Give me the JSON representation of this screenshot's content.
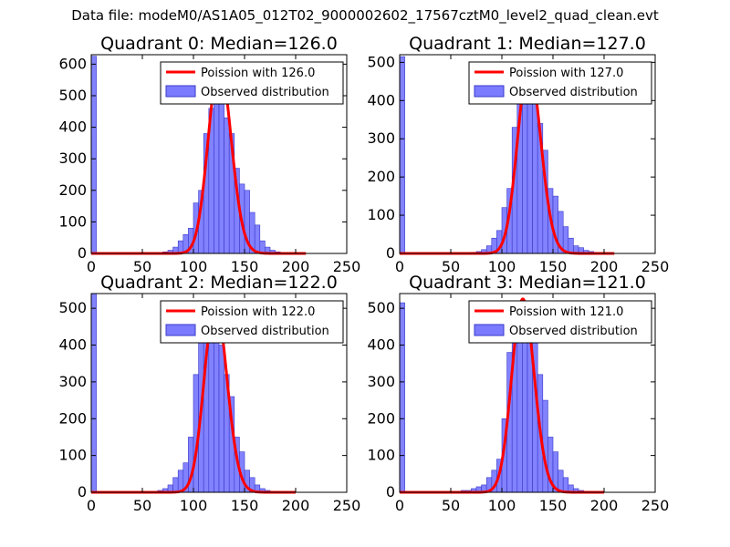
{
  "figure_title": "Data file: modeM0/AS1A05_012T02_9000002602_17567cztM0_level2_quad_clean.evt",
  "colors": {
    "bars": "#7b7bff",
    "bar_edge": "#3838c8",
    "poisson": "#ff0000",
    "axis": "#000000"
  },
  "chart_data": [
    {
      "type": "bar",
      "title": "Quadrant 0: Median=126.0",
      "median": 126.0,
      "xlim": [
        0,
        250
      ],
      "ylim": [
        0,
        630
      ],
      "xticks": [
        0,
        50,
        100,
        150,
        200,
        250
      ],
      "yticks": [
        0,
        100,
        200,
        300,
        400,
        500,
        600
      ],
      "legend": {
        "line_label": "Poission with 126.0",
        "bar_label": "Observed distribution",
        "position": "top-right"
      },
      "bin_width": 5,
      "bins": [
        0,
        60,
        65,
        70,
        75,
        80,
        85,
        90,
        95,
        100,
        105,
        110,
        115,
        120,
        125,
        130,
        135,
        140,
        145,
        150,
        155,
        160,
        165,
        170,
        175,
        180,
        185,
        190
      ],
      "counts": [
        625,
        2,
        3,
        5,
        10,
        20,
        40,
        60,
        80,
        160,
        200,
        380,
        460,
        540,
        500,
        430,
        380,
        270,
        220,
        200,
        130,
        90,
        40,
        20,
        10,
        5,
        3,
        2
      ],
      "poisson": {
        "mean": 126.0,
        "peak": 600,
        "x_range": [
          0,
          210
        ]
      }
    },
    {
      "type": "bar",
      "title": "Quadrant 1: Median=127.0",
      "median": 127.0,
      "xlim": [
        0,
        250
      ],
      "ylim": [
        0,
        520
      ],
      "xticks": [
        0,
        50,
        100,
        150,
        200,
        250
      ],
      "yticks": [
        0,
        100,
        200,
        300,
        400,
        500
      ],
      "legend": {
        "line_label": "Poission with 127.0",
        "bar_label": "Observed distribution",
        "position": "top-right"
      },
      "bin_width": 5,
      "bins": [
        0,
        70,
        75,
        80,
        85,
        90,
        95,
        100,
        105,
        110,
        115,
        120,
        125,
        130,
        135,
        140,
        145,
        150,
        155,
        160,
        165,
        170,
        175,
        180,
        185,
        190
      ],
      "counts": [
        515,
        3,
        5,
        10,
        20,
        40,
        60,
        120,
        170,
        330,
        450,
        500,
        470,
        420,
        340,
        270,
        170,
        150,
        110,
        70,
        40,
        20,
        15,
        8,
        5,
        2
      ],
      "poisson": {
        "mean": 127.0,
        "peak": 495,
        "x_range": [
          0,
          210
        ]
      }
    },
    {
      "type": "bar",
      "title": "Quadrant 2: Median=122.0",
      "median": 122.0,
      "xlim": [
        0,
        250
      ],
      "ylim": [
        0,
        540
      ],
      "xticks": [
        0,
        50,
        100,
        150,
        200,
        250
      ],
      "yticks": [
        0,
        100,
        200,
        300,
        400,
        500
      ],
      "legend": {
        "line_label": "Poission with 122.0",
        "bar_label": "Observed distribution",
        "position": "top-right"
      },
      "bin_width": 5,
      "bins": [
        0,
        65,
        70,
        75,
        80,
        85,
        90,
        95,
        100,
        105,
        110,
        115,
        120,
        125,
        130,
        135,
        140,
        145,
        150,
        155,
        160,
        165,
        170,
        175,
        180
      ],
      "counts": [
        540,
        5,
        10,
        20,
        40,
        60,
        80,
        150,
        320,
        430,
        490,
        510,
        480,
        400,
        320,
        260,
        150,
        110,
        60,
        40,
        20,
        10,
        5,
        3,
        2
      ],
      "poisson": {
        "mean": 122.0,
        "peak": 515,
        "x_range": [
          0,
          200
        ]
      }
    },
    {
      "type": "bar",
      "title": "Quadrant 3: Median=121.0",
      "median": 121.0,
      "xlim": [
        0,
        250
      ],
      "ylim": [
        0,
        540
      ],
      "xticks": [
        0,
        50,
        100,
        150,
        200,
        250
      ],
      "yticks": [
        0,
        100,
        200,
        300,
        400,
        500
      ],
      "legend": {
        "line_label": "Poission with 121.0",
        "bar_label": "Observed distribution",
        "position": "top-right"
      },
      "bin_width": 5,
      "bins": [
        0,
        60,
        65,
        70,
        75,
        80,
        85,
        90,
        95,
        100,
        105,
        110,
        115,
        120,
        125,
        130,
        135,
        140,
        145,
        150,
        155,
        160,
        165,
        170,
        175,
        180,
        185
      ],
      "counts": [
        515,
        5,
        5,
        10,
        15,
        20,
        40,
        60,
        90,
        200,
        380,
        480,
        500,
        520,
        490,
        420,
        320,
        250,
        150,
        110,
        60,
        40,
        20,
        10,
        5,
        3,
        2
      ],
      "poisson": {
        "mean": 121.0,
        "peak": 525,
        "x_range": [
          0,
          200
        ]
      }
    }
  ]
}
